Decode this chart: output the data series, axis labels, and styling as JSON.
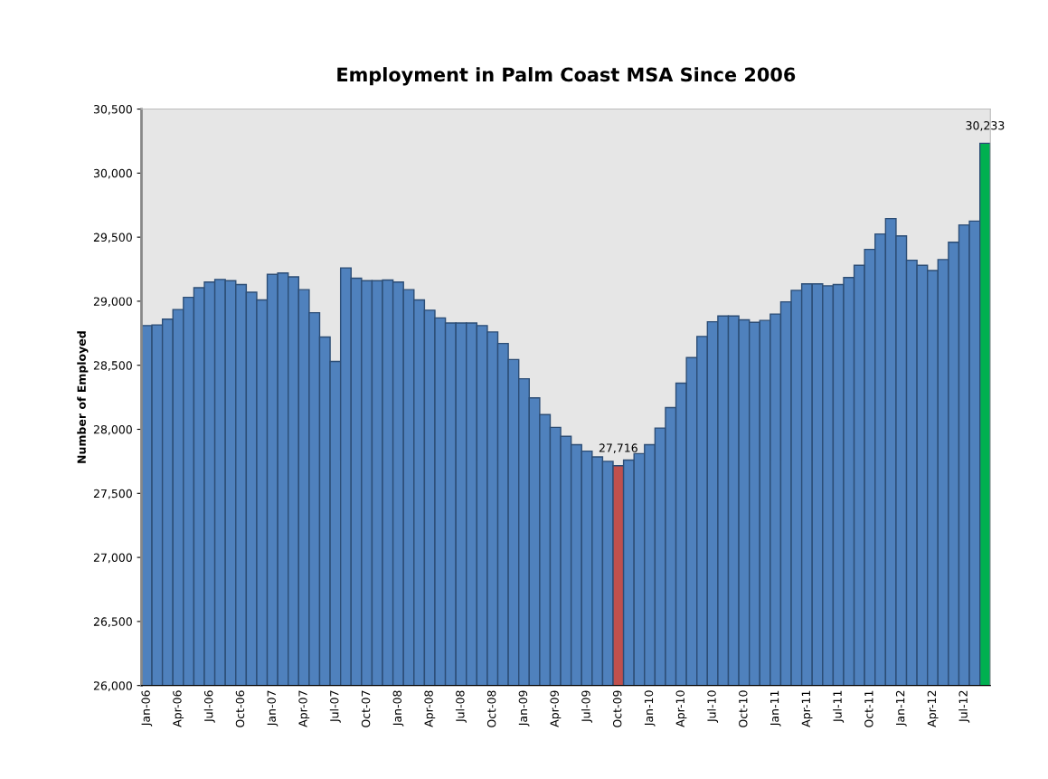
{
  "chart_data": {
    "type": "bar",
    "title": "Employment in Palm Coast MSA Since 2006",
    "ylabel": "Number of Employed",
    "categories": [
      "Jan-06",
      null,
      null,
      "Apr-06",
      null,
      null,
      "Jul-06",
      null,
      null,
      "Oct-06",
      null,
      null,
      "Jan-07",
      null,
      null,
      "Apr-07",
      null,
      null,
      "Jul-07",
      null,
      null,
      "Oct-07",
      null,
      null,
      "Jan-08",
      null,
      null,
      "Apr-08",
      null,
      null,
      "Jul-08",
      null,
      null,
      "Oct-08",
      null,
      null,
      "Jan-09",
      null,
      null,
      "Apr-09",
      null,
      null,
      "Jul-09",
      null,
      null,
      "Oct-09",
      null,
      null,
      "Jan-10",
      null,
      null,
      "Apr-10",
      null,
      null,
      "Jul-10",
      null,
      null,
      "Oct-10",
      null,
      null,
      "Jan-11",
      null,
      null,
      "Apr-11",
      null,
      null,
      "Jul-11",
      null,
      null,
      "Oct-11",
      null,
      null,
      "Jan-12",
      null,
      null,
      "Apr-12",
      null,
      null,
      "Jul-12",
      null,
      null
    ],
    "values": [
      28810,
      28815,
      28860,
      28935,
      29030,
      29105,
      29150,
      29170,
      29160,
      29130,
      29070,
      29010,
      29210,
      29220,
      29190,
      29090,
      28910,
      28720,
      28530,
      29260,
      29180,
      29160,
      29160,
      29165,
      29150,
      29090,
      29010,
      28930,
      28870,
      28830,
      28830,
      28830,
      28810,
      28760,
      28670,
      28545,
      28395,
      28245,
      28115,
      28015,
      27945,
      27880,
      27830,
      27785,
      27750,
      27716,
      27760,
      27810,
      27880,
      28010,
      28170,
      28360,
      28560,
      28725,
      28840,
      28885,
      28885,
      28855,
      28835,
      28850,
      28900,
      28995,
      29085,
      29135,
      29135,
      29120,
      29130,
      29185,
      29280,
      29405,
      29525,
      29645,
      29510,
      29320,
      29280,
      29240,
      29325,
      29460,
      29595,
      29625,
      30233
    ],
    "colors": [
      "#4f81bd",
      "#4f81bd",
      "#4f81bd",
      "#4f81bd",
      "#4f81bd",
      "#4f81bd",
      "#4f81bd",
      "#4f81bd",
      "#4f81bd",
      "#4f81bd",
      "#4f81bd",
      "#4f81bd",
      "#4f81bd",
      "#4f81bd",
      "#4f81bd",
      "#4f81bd",
      "#4f81bd",
      "#4f81bd",
      "#4f81bd",
      "#4f81bd",
      "#4f81bd",
      "#4f81bd",
      "#4f81bd",
      "#4f81bd",
      "#4f81bd",
      "#4f81bd",
      "#4f81bd",
      "#4f81bd",
      "#4f81bd",
      "#4f81bd",
      "#4f81bd",
      "#4f81bd",
      "#4f81bd",
      "#4f81bd",
      "#4f81bd",
      "#4f81bd",
      "#4f81bd",
      "#4f81bd",
      "#4f81bd",
      "#4f81bd",
      "#4f81bd",
      "#4f81bd",
      "#4f81bd",
      "#4f81bd",
      "#4f81bd",
      "#c0504d",
      "#4f81bd",
      "#4f81bd",
      "#4f81bd",
      "#4f81bd",
      "#4f81bd",
      "#4f81bd",
      "#4f81bd",
      "#4f81bd",
      "#4f81bd",
      "#4f81bd",
      "#4f81bd",
      "#4f81bd",
      "#4f81bd",
      "#4f81bd",
      "#4f81bd",
      "#4f81bd",
      "#4f81bd",
      "#4f81bd",
      "#4f81bd",
      "#4f81bd",
      "#4f81bd",
      "#4f81bd",
      "#4f81bd",
      "#4f81bd",
      "#4f81bd",
      "#4f81bd",
      "#4f81bd",
      "#4f81bd",
      "#4f81bd",
      "#4f81bd",
      "#4f81bd",
      "#4f81bd",
      "#4f81bd",
      "#4f81bd",
      "#00b050"
    ],
    "value_labels": [
      null,
      null,
      null,
      null,
      null,
      null,
      null,
      null,
      null,
      null,
      null,
      null,
      null,
      null,
      null,
      null,
      null,
      null,
      null,
      null,
      null,
      null,
      null,
      null,
      null,
      null,
      null,
      null,
      null,
      null,
      null,
      null,
      null,
      null,
      null,
      null,
      null,
      null,
      null,
      null,
      null,
      null,
      null,
      null,
      null,
      "27,716",
      null,
      null,
      null,
      null,
      null,
      null,
      null,
      null,
      null,
      null,
      null,
      null,
      null,
      null,
      null,
      null,
      null,
      null,
      null,
      null,
      null,
      null,
      null,
      null,
      null,
      null,
      null,
      null,
      null,
      null,
      null,
      null,
      null,
      null,
      "30,233"
    ],
    "ylim": [
      26000,
      30500
    ],
    "yticks": [
      {
        "value": 26000,
        "label": "26,000"
      },
      {
        "value": 26500,
        "label": "26,500"
      },
      {
        "value": 27000,
        "label": "27,000"
      },
      {
        "value": 27500,
        "label": "27,500"
      },
      {
        "value": 28000,
        "label": "28,000"
      },
      {
        "value": 28500,
        "label": "28,500"
      },
      {
        "value": 29000,
        "label": "29,000"
      },
      {
        "value": 29500,
        "label": "29,500"
      },
      {
        "value": 30000,
        "label": "30,000"
      },
      {
        "value": 30500,
        "label": "30,500"
      }
    ]
  }
}
